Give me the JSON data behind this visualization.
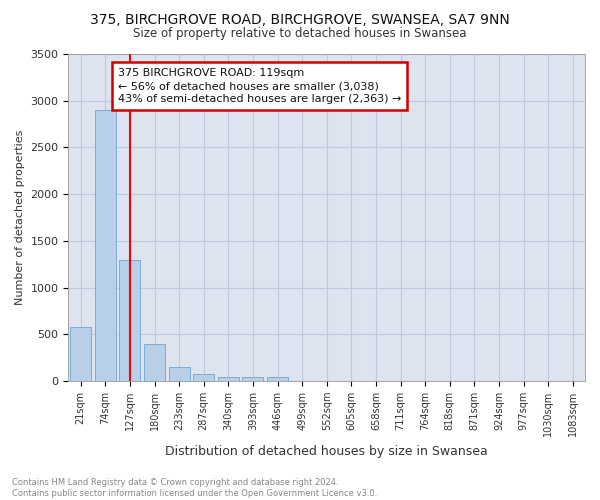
{
  "title1": "375, BIRCHGROVE ROAD, BIRCHGROVE, SWANSEA, SA7 9NN",
  "title2": "Size of property relative to detached houses in Swansea",
  "xlabel": "Distribution of detached houses by size in Swansea",
  "ylabel": "Number of detached properties",
  "footer1": "Contains HM Land Registry data © Crown copyright and database right 2024.",
  "footer2": "Contains public sector information licensed under the Open Government Licence v3.0.",
  "categories": [
    "21sqm",
    "74sqm",
    "127sqm",
    "180sqm",
    "233sqm",
    "287sqm",
    "340sqm",
    "393sqm",
    "446sqm",
    "499sqm",
    "552sqm",
    "605sqm",
    "658sqm",
    "711sqm",
    "764sqm",
    "818sqm",
    "871sqm",
    "924sqm",
    "977sqm",
    "1030sqm",
    "1083sqm"
  ],
  "values": [
    575,
    2900,
    1300,
    400,
    155,
    80,
    50,
    45,
    40,
    0,
    0,
    0,
    0,
    0,
    0,
    0,
    0,
    0,
    0,
    0,
    0
  ],
  "bar_color": "#b8cfe8",
  "bar_edge_color": "#7aadd4",
  "grid_color": "#c0c8dc",
  "plot_bg_color": "#dde4f0",
  "fig_bg_color": "#ffffff",
  "red_line_index": 2,
  "annotation_line1": "375 BIRCHGROVE ROAD: 119sqm",
  "annotation_line2": "← 56% of detached houses are smaller (3,038)",
  "annotation_line3": "43% of semi-detached houses are larger (2,363) →",
  "annotation_box_edge": "#cc0000",
  "ylim": [
    0,
    3500
  ],
  "yticks": [
    0,
    500,
    1000,
    1500,
    2000,
    2500,
    3000,
    3500
  ]
}
